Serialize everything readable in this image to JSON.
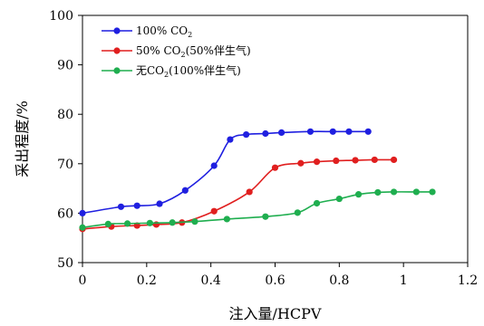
{
  "chart_data": {
    "type": "line",
    "title": "",
    "xlabel": "注入量/HCPV",
    "ylabel": "采出程度/%",
    "xlim": [
      0,
      1.2
    ],
    "ylim": [
      50,
      100
    ],
    "xticks": [
      "0",
      "0.2",
      "0.4",
      "0.6",
      "0.8",
      "1",
      "1.2"
    ],
    "yticks": [
      "50",
      "60",
      "70",
      "80",
      "90",
      "100"
    ],
    "grid": false,
    "legend_position": "top-left",
    "series": [
      {
        "legend": {
          "pre": "100% CO",
          "sub": "2",
          "post": ""
        },
        "color": "#1f1fe0",
        "x": [
          0,
          0.12,
          0.17,
          0.24,
          0.32,
          0.41,
          0.46,
          0.51,
          0.57,
          0.62,
          0.71,
          0.78,
          0.83,
          0.89
        ],
        "y": [
          60.0,
          61.3,
          61.5,
          61.9,
          64.6,
          69.6,
          74.9,
          75.9,
          76.1,
          76.3,
          76.5,
          76.5,
          76.5,
          76.5
        ]
      },
      {
        "legend": {
          "pre": "50% CO",
          "sub": "2",
          "post": "(50%伴生气)"
        },
        "color": "#e01f1f",
        "x": [
          0,
          0.09,
          0.17,
          0.23,
          0.31,
          0.41,
          0.52,
          0.6,
          0.68,
          0.73,
          0.79,
          0.85,
          0.91,
          0.97
        ],
        "y": [
          56.8,
          57.3,
          57.5,
          57.7,
          58.1,
          60.4,
          64.3,
          69.2,
          70.1,
          70.4,
          70.6,
          70.7,
          70.8,
          70.8
        ]
      },
      {
        "legend": {
          "pre": "无CO",
          "sub": "2",
          "post": "(100%伴生气)"
        },
        "color": "#1fae4f",
        "x": [
          0,
          0.08,
          0.14,
          0.21,
          0.28,
          0.35,
          0.45,
          0.57,
          0.67,
          0.73,
          0.8,
          0.86,
          0.92,
          0.97,
          1.04,
          1.09
        ],
        "y": [
          57.1,
          57.8,
          57.9,
          58.0,
          58.1,
          58.3,
          58.8,
          59.3,
          60.1,
          62.0,
          62.9,
          63.8,
          64.2,
          64.3,
          64.3,
          64.3
        ]
      }
    ]
  }
}
